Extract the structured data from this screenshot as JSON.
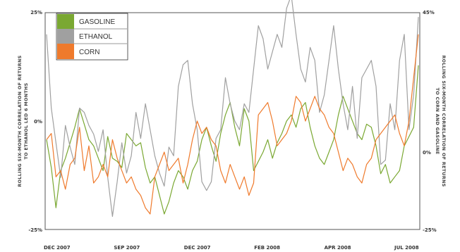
{
  "chart_data": {
    "type": "line",
    "title": "",
    "x_ticks": [
      "DEC 2007",
      "SEP 2007",
      "DEC 2007",
      "FEB 2008",
      "APR 2008",
      "JUL 2008"
    ],
    "left_axis": {
      "label_line1": "ROLLING SIX-MONTH CORRELATION OF RETURNS",
      "label_line2": "TO ETHANOL LED 6 MONTHS",
      "ticks": [
        "25%",
        "0%",
        "-25%"
      ],
      "range": [
        -25,
        25
      ]
    },
    "right_axis": {
      "label_line1": "ROLLING SIX-MONTH CORRELATION OF RETURNS",
      "label_line2": "TO CORN AND GASOLINE",
      "ticks": [
        "45%",
        "0%",
        "-25%"
      ],
      "range": [
        -25,
        45
      ]
    },
    "legend": {
      "position": "top-left"
    },
    "series": [
      {
        "name": "GASOLINE",
        "color": "#7aa832",
        "axis": "right",
        "values": [
          4,
          -5,
          -18,
          -6,
          -2,
          3,
          8,
          14,
          9,
          4,
          2,
          -2,
          -6,
          5,
          -2,
          -3,
          -5,
          6,
          4,
          2,
          3,
          -5,
          -10,
          -8,
          -14,
          -20,
          -16,
          -10,
          -6,
          -8,
          -12,
          -6,
          -3,
          4,
          8,
          2,
          -3,
          6,
          12,
          16,
          8,
          2,
          14,
          10,
          -6,
          -3,
          0,
          4,
          -2,
          3,
          6,
          10,
          12,
          8,
          14,
          16,
          8,
          2,
          -2,
          -4,
          0,
          4,
          12,
          18,
          14,
          10,
          6,
          4,
          9,
          8,
          2,
          -7,
          -4,
          -10,
          -8,
          -6,
          2,
          5,
          8,
          28
        ]
      },
      {
        "name": "ETHANOL",
        "color": "#a0a0a0",
        "axis": "left",
        "values": [
          20,
          3,
          -5,
          -13,
          -1,
          -6,
          -10,
          3,
          2,
          -1,
          -3,
          -7,
          -2,
          -13,
          -22,
          -14,
          -5,
          -12,
          -8,
          2,
          -4,
          4,
          -2,
          -8,
          -12,
          -15,
          -6,
          -8,
          8,
          13,
          14,
          4,
          -2,
          -14,
          -16,
          -14,
          -4,
          -2,
          10,
          4,
          0,
          -2,
          4,
          2,
          12,
          22,
          19,
          12,
          16,
          20,
          17,
          26,
          29,
          20,
          12,
          9,
          17,
          14,
          2,
          6,
          14,
          22,
          12,
          4,
          -2,
          8,
          -4,
          10,
          12,
          14,
          8,
          -10,
          -9,
          4,
          -2,
          14,
          20,
          -2,
          6,
          24
        ]
      },
      {
        "name": "CORN",
        "color": "#ef7a2c",
        "axis": "right",
        "values": [
          4,
          6,
          -8,
          -6,
          -12,
          -4,
          -2,
          8,
          -6,
          2,
          -10,
          -8,
          -4,
          -8,
          4,
          -2,
          -6,
          -10,
          -8,
          -12,
          -14,
          -18,
          -20,
          -8,
          -4,
          0,
          -6,
          -4,
          -2,
          -10,
          -4,
          4,
          10,
          6,
          8,
          4,
          2,
          -6,
          -10,
          -4,
          -8,
          -12,
          -8,
          -14,
          -10,
          12,
          14,
          16,
          10,
          2,
          4,
          6,
          10,
          18,
          16,
          10,
          14,
          18,
          14,
          12,
          8,
          6,
          0,
          -6,
          -2,
          -4,
          -8,
          -10,
          -4,
          -2,
          4,
          6,
          8,
          10,
          12,
          6,
          2,
          10,
          24,
          38
        ]
      }
    ]
  }
}
